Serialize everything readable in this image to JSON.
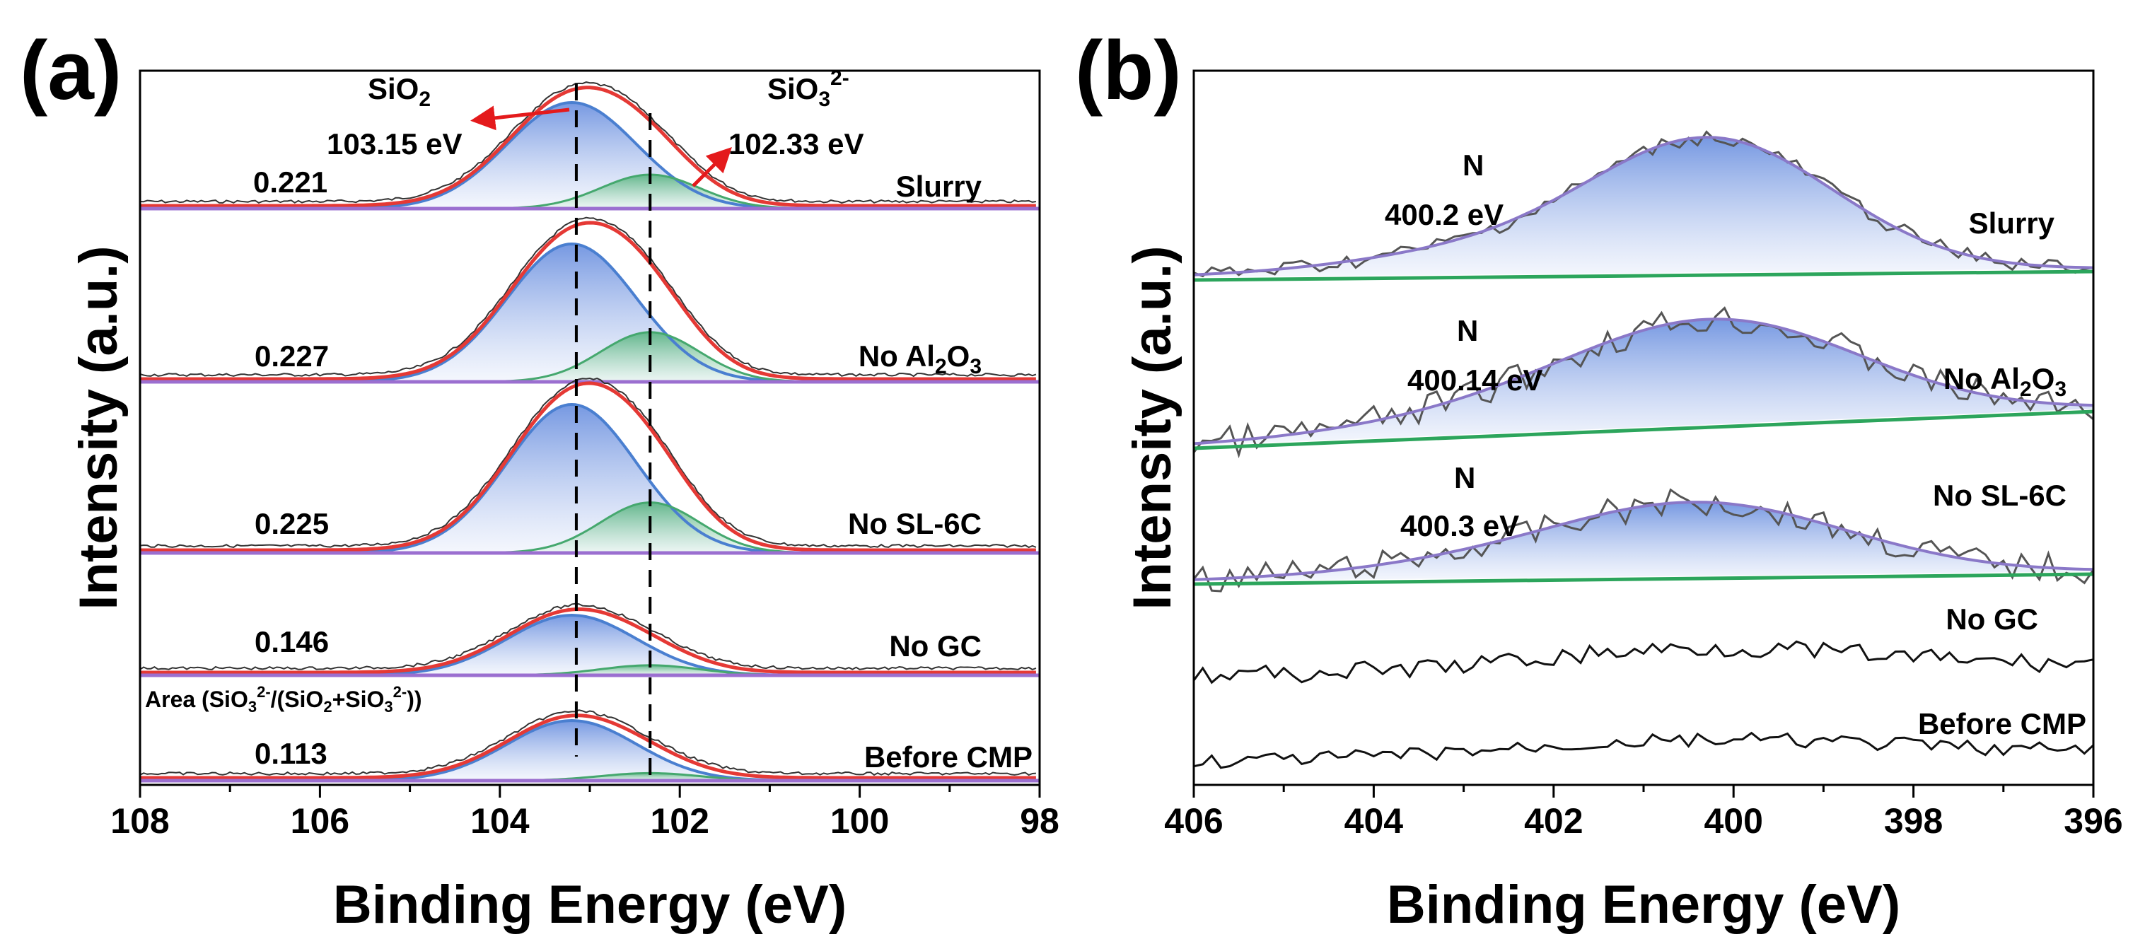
{
  "colors": {
    "envelope": "#e53935",
    "sio2_fill": "#8fa8e6",
    "sio2_line": "#4a7fd0",
    "sio3_fill": "#7fc8a0",
    "sio3_line": "#45a86e",
    "baseline": "#9b6fd0",
    "data": "#555555",
    "fit": "#8a78c8",
    "green": "#2ca55c",
    "arrow": "#e41a1c"
  },
  "chart_data": [
    {
      "type": "line",
      "panel_label": "(a)",
      "xlabel": "Binding Energy (eV)",
      "ylabel": "Intensity (a.u.)",
      "xlim": [
        108,
        98
      ],
      "xticks": [
        "108",
        "106",
        "104",
        "102",
        "100",
        "98"
      ],
      "tick_values": [
        108,
        106,
        104,
        102,
        100,
        98
      ],
      "peak_guides": [
        103.15,
        102.33
      ],
      "peaks": [
        {
          "species": "SiO2",
          "label_base": "SiO",
          "label_sub": "2",
          "position_text": "103.15 eV",
          "position": 103.15
        },
        {
          "species": "SiO3 2-",
          "label_base": "SiO",
          "label_sub": "3",
          "label_sup": "2-",
          "position_text": "102.33 eV",
          "position": 102.33
        }
      ],
      "ratio_caption": {
        "a": "Area (SiO",
        "b": "/(SiO",
        "c": "+SiO",
        "d": "))",
        "s3": "3",
        "s2": "2",
        "sup": "2-"
      },
      "series": [
        {
          "name": "Slurry",
          "area_ratio": "0.221",
          "sio2_height": 1.0,
          "sio3_height": 0.32
        },
        {
          "name": "No Al2O3",
          "name_parts": {
            "a": "No Al",
            "s1": "2",
            "b": "O",
            "s2": "3"
          },
          "area_ratio": "0.227",
          "sio2_height": 1.0,
          "sio3_height": 0.36
        },
        {
          "name": "No SL-6C",
          "area_ratio": "0.225",
          "sio2_height": 1.0,
          "sio3_height": 0.34
        },
        {
          "name": "No GC",
          "area_ratio": "0.146",
          "sio2_height": 0.72,
          "sio3_height": 0.12
        },
        {
          "name": "Before CMP",
          "area_ratio": "0.113",
          "sio2_height": 0.72,
          "sio3_height": 0.09
        }
      ]
    },
    {
      "type": "line",
      "panel_label": "(b)",
      "xlabel": "Binding Energy (eV)",
      "ylabel": "Intensity (a.u.)",
      "xlim": [
        406,
        396
      ],
      "xticks": [
        "406",
        "404",
        "402",
        "400",
        "398",
        "396"
      ],
      "tick_values": [
        406,
        404,
        402,
        400,
        398,
        396
      ],
      "series": [
        {
          "name": "Slurry",
          "element": "N",
          "peak_text": "400.2 eV",
          "peak": 400.2,
          "fitted": true
        },
        {
          "name": "No Al2O3",
          "name_parts": {
            "a": "No Al",
            "s1": "2",
            "b": "O",
            "s2": "3"
          },
          "element": "N",
          "peak_text": "400.14 eV",
          "peak": 400.14,
          "fitted": true
        },
        {
          "name": "No SL-6C",
          "element": "N",
          "peak_text": "400.3 eV",
          "peak": 400.3,
          "fitted": true
        },
        {
          "name": "No GC",
          "fitted": false
        },
        {
          "name": "Before CMP",
          "fitted": false
        }
      ]
    }
  ]
}
